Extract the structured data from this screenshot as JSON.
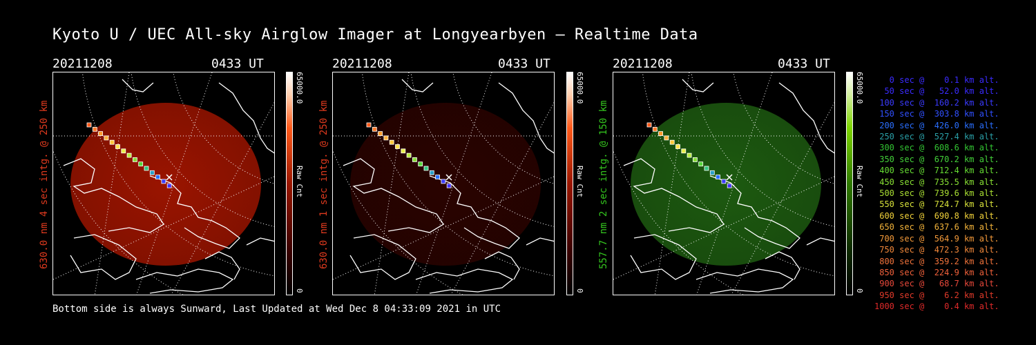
{
  "title": "Kyoto U / UEC All-sky Airglow Imager at Longyearbyen — Realtime Data",
  "footer": "Bottom side is always Sunward, Last Updated at Wed Dec  8 04:33:09 2021 in UTC",
  "panels": [
    {
      "date": "20211208",
      "time": "0433 UT",
      "ylabel": "630.0 nm 4 sec intg. @ 250 km",
      "ylabel_color": "#e03a1e",
      "cbar_max": "65000.0",
      "cbar_min": "0",
      "cbar_unit": "Raw Cnt",
      "cbar_color": "#ff2a00",
      "glow_color": "#9a1400"
    },
    {
      "date": "20211208",
      "time": "0433 UT",
      "ylabel": "630.0 nm 1 sec intg. @ 250 km",
      "ylabel_color": "#e03a1e",
      "cbar_max": "65000.0",
      "cbar_min": "0",
      "cbar_unit": "Raw Cnt",
      "cbar_color": "#ff2a00",
      "glow_color": "#2a0300"
    },
    {
      "date": "20211208",
      "time": "0433 UT",
      "ylabel": "557.7 nm 2 sec intg. @ 150 km",
      "ylabel_color": "#34c51e",
      "cbar_max": "65000.0",
      "cbar_min": "0",
      "cbar_unit": "Raw Cnt",
      "cbar_color": "#66cc00",
      "glow_color": "#1d5a10"
    }
  ],
  "legend": [
    {
      "text": "   0 sec @    0.1 km alt.",
      "color": "#3a2bff"
    },
    {
      "text": "  50 sec @   52.0 km alt.",
      "color": "#3a2bff"
    },
    {
      "text": " 100 sec @  160.2 km alt.",
      "color": "#3a3aff"
    },
    {
      "text": " 150 sec @  303.8 km alt.",
      "color": "#3050ff"
    },
    {
      "text": " 200 sec @  426.0 km alt.",
      "color": "#2a6fff"
    },
    {
      "text": " 250 sec @  527.4 km alt.",
      "color": "#2aa0a8"
    },
    {
      "text": " 300 sec @  608.6 km alt.",
      "color": "#33c733"
    },
    {
      "text": " 350 sec @  670.2 km alt.",
      "color": "#44d23a"
    },
    {
      "text": " 400 sec @  712.4 km alt.",
      "color": "#66dd33"
    },
    {
      "text": " 450 sec @  735.5 km alt.",
      "color": "#88e033"
    },
    {
      "text": " 500 sec @  739.6 km alt.",
      "color": "#aae033"
    },
    {
      "text": " 550 sec @  724.7 km alt.",
      "color": "#d8e23a"
    },
    {
      "text": " 600 sec @  690.8 km alt.",
      "color": "#f2d23a"
    },
    {
      "text": " 650 sec @  637.6 km alt.",
      "color": "#f4b43a"
    },
    {
      "text": " 700 sec @  564.9 km alt.",
      "color": "#f49a3a"
    },
    {
      "text": " 750 sec @  472.3 km alt.",
      "color": "#f2883a"
    },
    {
      "text": " 800 sec @  359.2 km alt.",
      "color": "#f0723a"
    },
    {
      "text": " 850 sec @  224.9 km alt.",
      "color": "#f0603a"
    },
    {
      "text": " 900 sec @   68.7 km alt.",
      "color": "#e8483a"
    },
    {
      "text": " 950 sec @    6.2 km alt.",
      "color": "#e23a2a"
    },
    {
      "text": "1000 sec @    0.4 km alt.",
      "color": "#e02a2a"
    }
  ]
}
